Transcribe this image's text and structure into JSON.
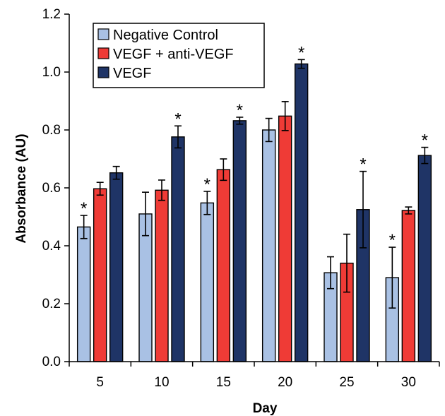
{
  "chart_data": {
    "type": "bar",
    "title": "",
    "xlabel": "Day",
    "ylabel": "Absorbance (AU)",
    "ylim": [
      0,
      1.2
    ],
    "yticks": [
      "0.0",
      "0.2",
      "0.4",
      "0.6",
      "0.8",
      "1.0",
      "1.2"
    ],
    "categories": [
      "5",
      "10",
      "15",
      "20",
      "25",
      "30"
    ],
    "legend_position": "top-left",
    "grid": false,
    "significance_marker": "*",
    "series": [
      {
        "name": "Negative Control",
        "color": "#a9c1e4",
        "values": [
          0.465,
          0.51,
          0.548,
          0.8,
          0.307,
          0.29
        ],
        "errors": [
          0.04,
          0.075,
          0.04,
          0.04,
          0.055,
          0.105
        ],
        "significant": [
          true,
          false,
          true,
          false,
          false,
          true
        ]
      },
      {
        "name": "VEGF + anti-VEGF",
        "color": "#ef3b36",
        "values": [
          0.597,
          0.592,
          0.663,
          0.848,
          0.34,
          0.522
        ],
        "errors": [
          0.022,
          0.035,
          0.037,
          0.05,
          0.1,
          0.012
        ],
        "significant": [
          false,
          false,
          false,
          false,
          false,
          false
        ]
      },
      {
        "name": "VEGF",
        "color": "#1f3466",
        "values": [
          0.652,
          0.776,
          0.832,
          1.028,
          0.525,
          0.712
        ],
        "errors": [
          0.022,
          0.038,
          0.012,
          0.015,
          0.132,
          0.028
        ],
        "significant": [
          false,
          true,
          true,
          true,
          true,
          true
        ]
      }
    ]
  }
}
